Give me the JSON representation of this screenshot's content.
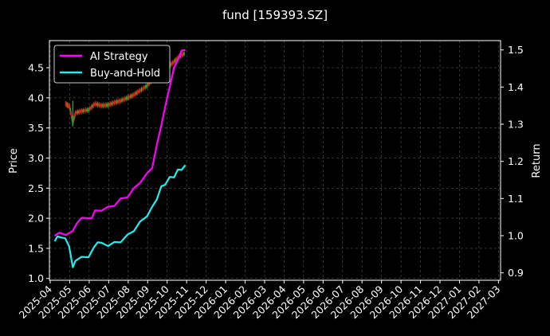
{
  "chart_data": {
    "type": "line",
    "title": "fund [159393.SZ]",
    "ylabel_left": "Price",
    "ylabel_right": "Return",
    "grid": true,
    "legend_placement": "top-left",
    "x_ticks": [
      "2025-04",
      "2025-05",
      "2025-06",
      "2025-07",
      "2025-08",
      "2025-09",
      "2025-10",
      "2025-11",
      "2025-12",
      "2026-01",
      "2026-02",
      "2026-03",
      "2026-04",
      "2026-05",
      "2026-06",
      "2026-07",
      "2026-08",
      "2026-09",
      "2026-10",
      "2026-11",
      "2026-12",
      "2027-01",
      "2027-02",
      "2027-03"
    ],
    "y_left_ticks": [
      "1.0",
      "1.5",
      "2.0",
      "2.5",
      "3.0",
      "3.5",
      "4.0",
      "4.5"
    ],
    "y_left_range": [
      0.97,
      4.95
    ],
    "y_right_ticks": [
      "0.9",
      "1.0",
      "1.1",
      "1.2",
      "1.3",
      "1.4",
      "1.5"
    ],
    "y_right_range": [
      0.88,
      1.525
    ],
    "series": [
      {
        "name": "AI Strategy",
        "axis": "right",
        "color": "#ff00ff",
        "points": [
          [
            "2025-04-08",
            1.0
          ],
          [
            "2025-04-15",
            1.005
          ],
          [
            "2025-04-25",
            1.005
          ],
          [
            "2025-05-06",
            1.01
          ],
          [
            "2025-05-12",
            1.035
          ],
          [
            "2025-05-20",
            1.045
          ],
          [
            "2025-06-05",
            1.05
          ],
          [
            "2025-06-10",
            1.065
          ],
          [
            "2025-06-20",
            1.07
          ],
          [
            "2025-06-30",
            1.075
          ],
          [
            "2025-07-10",
            1.083
          ],
          [
            "2025-07-20",
            1.097
          ],
          [
            "2025-07-31",
            1.106
          ],
          [
            "2025-08-10",
            1.125
          ],
          [
            "2025-08-20",
            1.145
          ],
          [
            "2025-08-31",
            1.165
          ],
          [
            "2025-09-08",
            1.185
          ],
          [
            "2025-09-15",
            1.24
          ],
          [
            "2025-09-22",
            1.3
          ],
          [
            "2025-09-30",
            1.36
          ],
          [
            "2025-10-06",
            1.41
          ],
          [
            "2025-10-12",
            1.45
          ],
          [
            "2025-10-18",
            1.475
          ],
          [
            "2025-10-24",
            1.495
          ],
          [
            "2025-10-30",
            1.5
          ]
        ]
      },
      {
        "name": "Buy-and-Hold",
        "axis": "right",
        "color": "#22eeee",
        "points": [
          [
            "2025-04-08",
            0.985
          ],
          [
            "2025-04-12",
            0.995
          ],
          [
            "2025-04-18",
            0.998
          ],
          [
            "2025-04-24",
            0.99
          ],
          [
            "2025-04-30",
            0.975
          ],
          [
            "2025-05-06",
            0.912
          ],
          [
            "2025-05-10",
            0.935
          ],
          [
            "2025-05-20",
            0.94
          ],
          [
            "2025-05-31",
            0.945
          ],
          [
            "2025-06-08",
            0.965
          ],
          [
            "2025-06-14",
            0.985
          ],
          [
            "2025-06-20",
            0.978
          ],
          [
            "2025-06-30",
            0.975
          ],
          [
            "2025-07-10",
            0.98
          ],
          [
            "2025-07-20",
            0.985
          ],
          [
            "2025-07-31",
            1.0
          ],
          [
            "2025-08-10",
            1.015
          ],
          [
            "2025-08-20",
            1.035
          ],
          [
            "2025-08-31",
            1.055
          ],
          [
            "2025-09-08",
            1.075
          ],
          [
            "2025-09-15",
            1.1
          ],
          [
            "2025-09-22",
            1.13
          ],
          [
            "2025-09-28",
            1.14
          ],
          [
            "2025-10-05",
            1.155
          ],
          [
            "2025-10-12",
            1.16
          ],
          [
            "2025-10-18",
            1.175
          ],
          [
            "2025-10-24",
            1.18
          ],
          [
            "2025-10-30",
            1.19
          ]
        ]
      },
      {
        "name": "Price",
        "axis": "left",
        "type": "candlestick",
        "colors": {
          "up": "#dd2222",
          "down": "#22aa22"
        },
        "points": [
          [
            "2025-04-25",
            3.9
          ],
          [
            "2025-05-01",
            3.85
          ],
          [
            "2025-05-06",
            3.58
          ],
          [
            "2025-05-10",
            3.75
          ],
          [
            "2025-05-20",
            3.78
          ],
          [
            "2025-05-31",
            3.8
          ],
          [
            "2025-06-10",
            3.9
          ],
          [
            "2025-06-20",
            3.87
          ],
          [
            "2025-06-30",
            3.88
          ],
          [
            "2025-07-10",
            3.92
          ],
          [
            "2025-07-20",
            3.95
          ],
          [
            "2025-07-31",
            4.0
          ],
          [
            "2025-08-10",
            4.05
          ],
          [
            "2025-08-20",
            4.12
          ],
          [
            "2025-08-31",
            4.2
          ],
          [
            "2025-09-10",
            4.32
          ],
          [
            "2025-09-20",
            4.45
          ],
          [
            "2025-09-30",
            4.5
          ],
          [
            "2025-10-10",
            4.58
          ],
          [
            "2025-10-20",
            4.68
          ],
          [
            "2025-10-30",
            4.75
          ]
        ]
      }
    ]
  }
}
